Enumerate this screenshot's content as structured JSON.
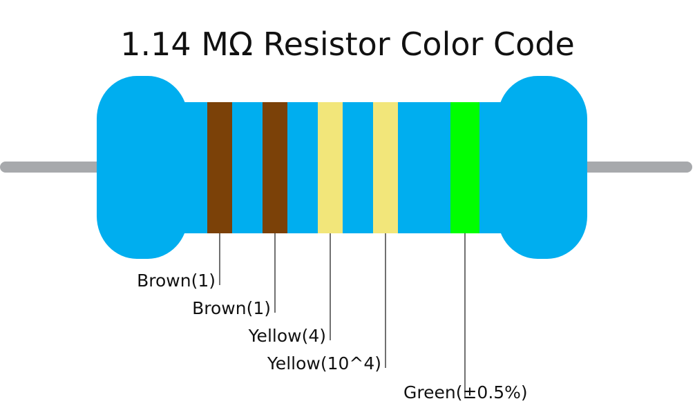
{
  "title": "1.14 MΩ Resistor Color Code",
  "resistor": {
    "body_color": "#00AEEF",
    "lead_color": "#A7A9AC"
  },
  "bands": [
    {
      "color_name": "Brown",
      "color": "#7B4108",
      "label": "Brown(1)"
    },
    {
      "color_name": "Brown",
      "color": "#7B4108",
      "label": "Brown(1)"
    },
    {
      "color_name": "Yellow",
      "color": "#F2E67A",
      "label": "Yellow(4)"
    },
    {
      "color_name": "Yellow",
      "color": "#F2E67A",
      "label": "Yellow(10^4)"
    },
    {
      "color_name": "Green",
      "color": "#00FF00",
      "label": "Green(±0.5%)"
    }
  ]
}
